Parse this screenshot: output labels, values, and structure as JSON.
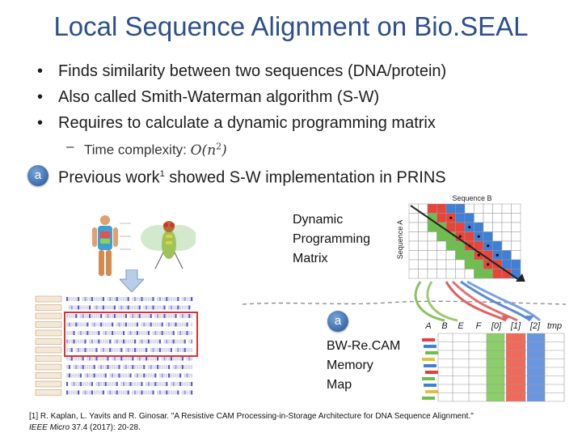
{
  "title": "Local Sequence Alignment on Bio.SEAL",
  "bullets": [
    "Finds similarity between two sequences (DNA/protein)",
    "Also called Smith-Waterman algorithm (S-W)",
    "Requires to calculate a dynamic programming matrix"
  ],
  "sub_bullet": {
    "label": "Time complexity: ",
    "complexity": "O(n",
    "exponent": "2",
    "close": ")"
  },
  "previous_work": {
    "text": "Previous work",
    "ref": "1",
    "rest": " showed S-W implementation in PRINS"
  },
  "badge_label": "a",
  "dp_label": [
    "Dynamic",
    "Programming",
    "Matrix"
  ],
  "matrix_axes": {
    "top": "Sequence B",
    "side": "Sequence A"
  },
  "memory_label": [
    "BW-Re.CAM",
    "Memory",
    "Map"
  ],
  "memory_columns": [
    "A",
    "B",
    "E",
    "F",
    "[0]",
    "[1]",
    "[2]",
    "tmp"
  ],
  "footnote": {
    "line1": "[1] R. Kaplan, L. Yavits and R. Ginosar. \"A Resistive CAM Processing-in-Storage Architecture for DNA Sequence Alignment.\"",
    "journal": "IEEE Micro",
    "line2_rest": " 37.4 (2017): 20-28."
  },
  "colors": {
    "title": "#2b4f8f",
    "badge": "#3b6aa8",
    "green": "#6cbf4a",
    "red": "#e8443a",
    "blue": "#3f7fd8"
  }
}
